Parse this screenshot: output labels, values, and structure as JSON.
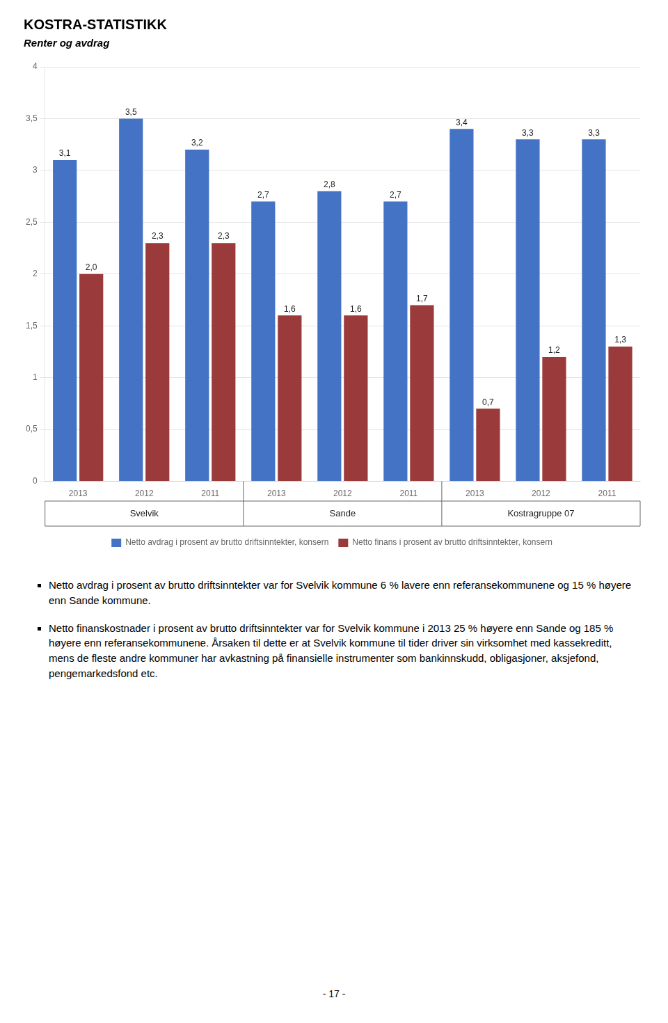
{
  "chart_data": {
    "type": "bar",
    "title": "KOSTRA-STATISTIKK",
    "subtitle": "Renter og avdrag",
    "categories": [
      "2013",
      "2012",
      "2011",
      "2013",
      "2012",
      "2011",
      "2013",
      "2012",
      "2011"
    ],
    "groups": [
      "Svelvik",
      "Sande",
      "Kostragruppe 07"
    ],
    "series": [
      {
        "name": "Netto avdrag i prosent av brutto driftsinntekter, konsern",
        "color": "#4472C4",
        "values": [
          3.1,
          3.5,
          3.2,
          2.7,
          2.8,
          2.7,
          3.4,
          3.3,
          3.3
        ],
        "value_labels": [
          "3,1",
          "3,5",
          "3,2",
          "2,7",
          "2,8",
          "2,7",
          "3,4",
          "3,3",
          "3,3"
        ]
      },
      {
        "name": "Netto finans i prosent av brutto driftsinntekter, konsern",
        "color": "#9B3A3A",
        "values": [
          2.0,
          2.3,
          2.3,
          1.6,
          1.6,
          1.7,
          0.7,
          1.2,
          1.3
        ],
        "value_labels": [
          "2,0",
          "2,3",
          "2,3",
          "1,6",
          "1,6",
          "1,7",
          "0,7",
          "1,2",
          "1,3"
        ]
      }
    ],
    "ylim": [
      0,
      4
    ],
    "yticks": [
      0,
      {
        "value": 0.5,
        "label": "0,5"
      },
      1,
      {
        "value": 1.5,
        "label": "1,5"
      },
      2,
      {
        "value": 2.5,
        "label": "2,5"
      },
      3,
      {
        "value": 3.5,
        "label": "3,5"
      },
      4
    ],
    "grid": true,
    "legend": "bottom",
    "data_labels": true
  },
  "bullets": [
    "Netto avdrag i prosent av brutto driftsinntekter var for Svelvik kommune 6 % lavere enn referansekommunene og 15 % høyere enn Sande kommune.",
    "Netto finanskostnader i prosent av brutto driftsinntekter var for Svelvik kommune i 2013 25 % høyere enn Sande og 185 % høyere enn referansekommunene. Årsaken til dette er at Svelvik kommune til tider driver sin virksomhet med kassekreditt, mens de fleste andre kommuner har avkastning på finansielle instrumenter som bankinnskudd, obligasjoner, aksjefond, pengemarkedsfond etc."
  ],
  "page_number": "- 17 -"
}
